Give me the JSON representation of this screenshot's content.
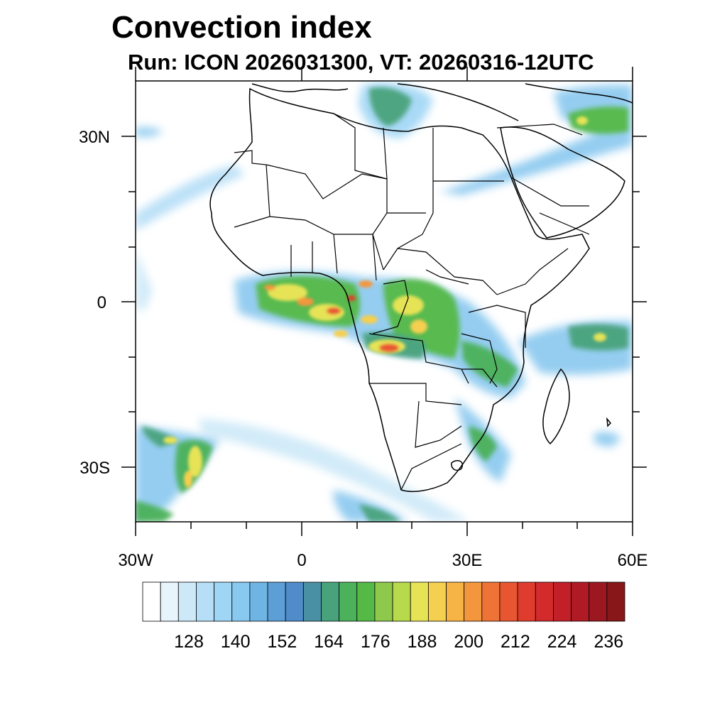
{
  "title": "Convection index",
  "subtitle": "Run: ICON 2026031300,  VT: 20260316-12UTC",
  "axes": {
    "lat_labels": [
      "30N",
      "0",
      "30S"
    ],
    "lon_labels": [
      "30W",
      "0",
      "30E",
      "60E"
    ]
  },
  "colorbar": {
    "labels": [
      "128",
      "140",
      "152",
      "164",
      "176",
      "188",
      "200",
      "212",
      "224",
      "236"
    ],
    "colors": [
      "#ffffff",
      "#e8f4fc",
      "#cde9f8",
      "#b6def7",
      "#9fd5f5",
      "#89c8ef",
      "#6fb5e4",
      "#5b9fd6",
      "#4f8cc9",
      "#4a90a4",
      "#48a37c",
      "#4bb15a",
      "#55b946",
      "#8fc94c",
      "#b7d94c",
      "#e6e357",
      "#f5cf4f",
      "#f7b446",
      "#f4963d",
      "#ee7336",
      "#e85631",
      "#e03c2d",
      "#d32a2b",
      "#c21f28",
      "#b01a24",
      "#9c1820",
      "#871719"
    ]
  }
}
